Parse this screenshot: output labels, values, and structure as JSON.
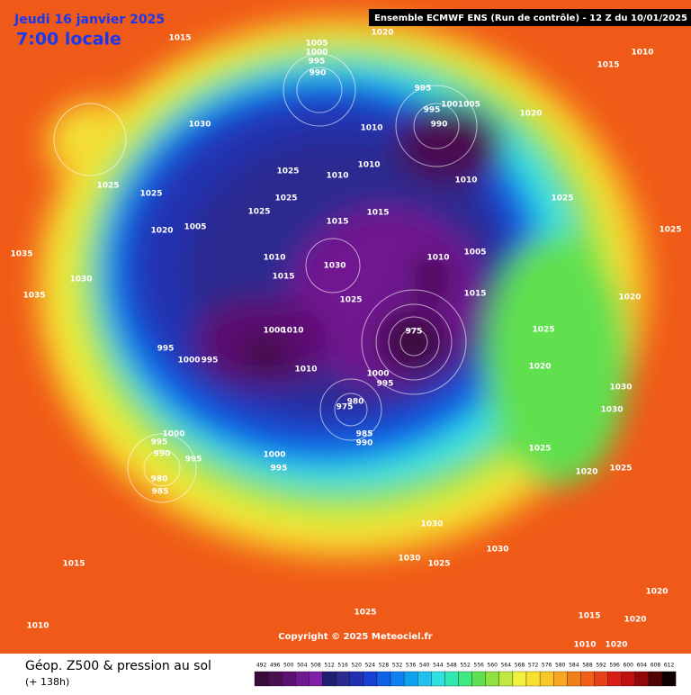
{
  "header": {
    "date": "Jeudi 16 janvier 2025",
    "time": "7:00 locale",
    "run": "Ensemble ECMWF ENS  (Run de contrôle)  -  12 Z du 10/01/2025"
  },
  "footer": {
    "title": "Géop. Z500 & pression au sol",
    "lead": "(+ 138h)",
    "copyright": "Copyright © 2025 Meteociel.fr"
  },
  "colorbar": {
    "labels": [
      "492",
      "496",
      "500",
      "504",
      "508",
      "512",
      "516",
      "520",
      "524",
      "528",
      "532",
      "536",
      "540",
      "544",
      "548",
      "552",
      "556",
      "560",
      "564",
      "568",
      "572",
      "576",
      "580",
      "584",
      "588",
      "592",
      "596",
      "600",
      "604",
      "608",
      "612"
    ],
    "colors": [
      "#3a0a3a",
      "#4a1050",
      "#5c1070",
      "#701890",
      "#8020a8",
      "#202070",
      "#2a2a90",
      "#2030b0",
      "#1840d0",
      "#1060e8",
      "#1080f0",
      "#10a0f0",
      "#20c0f0",
      "#30e0e0",
      "#30e8b0",
      "#40e880",
      "#60e050",
      "#90e040",
      "#c0e840",
      "#f0f040",
      "#f8e030",
      "#f8c828",
      "#f8a820",
      "#f08018",
      "#f06018",
      "#e84018",
      "#d82018",
      "#c01010",
      "#900808",
      "#500404",
      "#100000"
    ]
  },
  "isobar_labels": [
    "1015",
    "1020",
    "1005",
    "1000",
    "995",
    "990",
    "1015",
    "1010",
    "1030",
    "995",
    "995",
    "1001005",
    "990",
    "1020",
    "1010",
    "1025",
    "1010",
    "1010",
    "1010",
    "1025",
    "1025",
    "1025",
    "1025",
    "1015",
    "1015",
    "1020",
    "1005",
    "1025",
    "1035",
    "1010",
    "1015",
    "1030",
    "1005",
    "1010",
    "1015",
    "1035",
    "1030",
    "1025",
    "1000",
    "1010",
    "995",
    "1000",
    "995",
    "975",
    "1010",
    "1000",
    "995",
    "980",
    "975",
    "985",
    "990",
    "1000",
    "995",
    "990",
    "995",
    "980",
    "985",
    "1000",
    "995",
    "1030",
    "1030",
    "1025",
    "1030",
    "1015",
    "1010",
    "1025",
    "1020",
    "1020",
    "1015",
    "1010",
    "1020",
    "1025",
    "1020",
    "1025",
    "1020",
    "1025",
    "1025",
    "1020",
    "1030",
    "1030"
  ]
}
